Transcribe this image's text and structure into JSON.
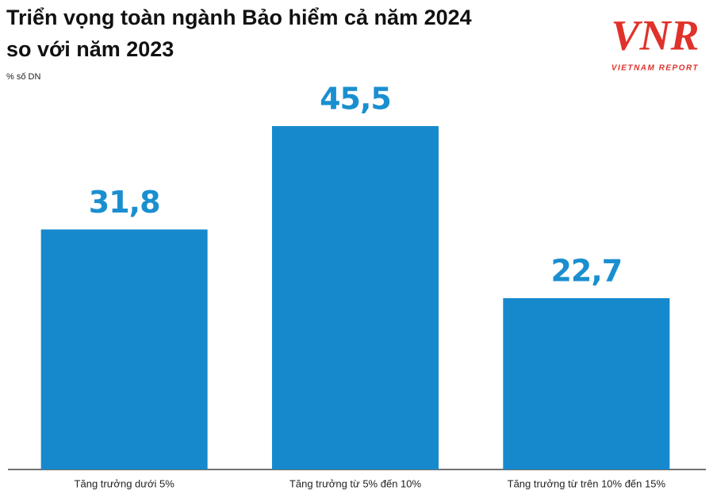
{
  "chart_data": {
    "type": "bar",
    "title": [
      "Triển vọng toàn ngành Bảo hiểm cả năm 2024",
      "so với năm 2023"
    ],
    "subtitle": "% số DN",
    "categories": [
      "Tăng trưởng dưới 5%",
      "Tăng trưởng từ 5% đến 10%",
      "Tăng trưởng từ trên 10% đến 15%"
    ],
    "values": [
      31.8,
      45.5,
      22.7
    ],
    "value_labels": [
      "31,8",
      "45,5",
      "22,7"
    ],
    "color": "#1689cc",
    "label_color": "#1a8fd0"
  },
  "logo": {
    "mark": "VNR",
    "text": "VIETNAM REPORT"
  }
}
